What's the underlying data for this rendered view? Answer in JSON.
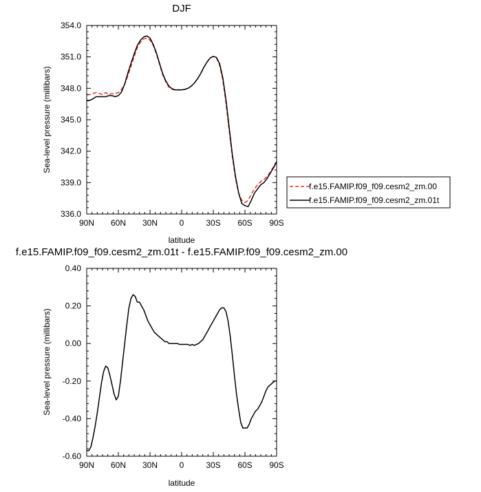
{
  "chart_data": [
    {
      "type": "line",
      "title": "DJF",
      "xlabel": "latitude",
      "ylabel": "Sea-level pressure (millibars)",
      "xlim": [
        -90,
        90
      ],
      "ylim": [
        336.0,
        354.0
      ],
      "x_ticks": [
        {
          "value": -90,
          "label": "90N"
        },
        {
          "value": -60,
          "label": "60N"
        },
        {
          "value": -30,
          "label": "30N"
        },
        {
          "value": 0,
          "label": "0"
        },
        {
          "value": 30,
          "label": "30S"
        },
        {
          "value": 60,
          "label": "60S"
        },
        {
          "value": 90,
          "label": "90S"
        }
      ],
      "y_ticks": [
        336.0,
        339.0,
        342.0,
        345.0,
        348.0,
        351.0,
        354.0
      ],
      "y_tick_labels": [
        "336.0",
        "339.0",
        "342.0",
        "345.0",
        "348.0",
        "351.0",
        "354.0"
      ],
      "legend_position": "right",
      "series": [
        {
          "name": "f.e15.FAMIP.f09_f09.cesm2_zm.00",
          "color": "#e8312a",
          "dash": "dashed",
          "x": [
            -90,
            -87,
            -84,
            -81,
            -78,
            -75,
            -72,
            -69,
            -66,
            -63,
            -60,
            -57,
            -54,
            -51,
            -48,
            -45,
            -42,
            -39,
            -36,
            -33,
            -30,
            -27,
            -24,
            -21,
            -18,
            -15,
            -12,
            -9,
            -6,
            -3,
            0,
            3,
            6,
            9,
            12,
            15,
            18,
            21,
            24,
            27,
            30,
            33,
            36,
            39,
            42,
            45,
            48,
            51,
            54,
            57,
            60,
            63,
            66,
            69,
            72,
            75,
            78,
            81,
            84,
            87,
            90
          ],
          "y": [
            347.4,
            347.4,
            347.5,
            347.6,
            347.5,
            347.4,
            347.6,
            347.4,
            347.5,
            347.5,
            347.6,
            347.9,
            348.4,
            349.2,
            350.1,
            351.0,
            351.9,
            352.4,
            352.7,
            352.8,
            352.6,
            352.1,
            351.3,
            350.3,
            349.3,
            348.6,
            348.1,
            347.9,
            347.85,
            347.85,
            347.85,
            347.9,
            348.0,
            348.2,
            348.5,
            348.9,
            349.4,
            350.0,
            350.5,
            350.9,
            351.05,
            350.9,
            350.2,
            348.8,
            346.6,
            344.0,
            341.5,
            339.4,
            338.0,
            337.3,
            337.1,
            337.3,
            337.9,
            338.4,
            338.8,
            339.1,
            339.3,
            339.6,
            340.0,
            340.5,
            341.0
          ]
        },
        {
          "name": "f.e15.FAMIP.f09_f09.cesm2_zm.01t",
          "color": "#000000",
          "dash": "solid",
          "x": [
            -90,
            -87,
            -84,
            -81,
            -78,
            -75,
            -72,
            -69,
            -66,
            -63,
            -60,
            -57,
            -54,
            -51,
            -48,
            -45,
            -42,
            -39,
            -36,
            -33,
            -30,
            -27,
            -24,
            -21,
            -18,
            -15,
            -12,
            -9,
            -6,
            -3,
            0,
            3,
            6,
            9,
            12,
            15,
            18,
            21,
            24,
            27,
            30,
            33,
            36,
            39,
            42,
            45,
            48,
            51,
            54,
            57,
            60,
            63,
            66,
            69,
            72,
            75,
            78,
            81,
            84,
            87,
            90
          ],
          "y": [
            346.85,
            346.85,
            347.0,
            347.2,
            347.2,
            347.2,
            347.2,
            347.3,
            347.3,
            347.2,
            347.3,
            347.65,
            348.4,
            349.45,
            350.4,
            351.3,
            352.1,
            352.6,
            352.9,
            353.0,
            352.8,
            352.2,
            351.4,
            350.4,
            349.4,
            348.7,
            348.2,
            347.95,
            347.85,
            347.85,
            347.85,
            347.9,
            348.0,
            348.2,
            348.5,
            348.9,
            349.4,
            350.0,
            350.5,
            350.9,
            351.05,
            350.95,
            350.35,
            349.0,
            346.9,
            344.3,
            341.7,
            339.6,
            338.0,
            337.0,
            336.8,
            336.7,
            337.3,
            338.0,
            338.4,
            338.8,
            339.0,
            339.4,
            339.9,
            340.4,
            341.0
          ]
        }
      ]
    },
    {
      "type": "line",
      "title": "f.e15.FAMIP.f09_f09.cesm2_zm.01t - f.e15.FAMIP.f09_f09.cesm2_zm.00",
      "xlabel": "latitude",
      "ylabel": "Sea-level pressure (millibars)",
      "xlim": [
        -90,
        90
      ],
      "ylim": [
        -0.6,
        0.4
      ],
      "x_ticks": [
        {
          "value": -90,
          "label": "90N"
        },
        {
          "value": -60,
          "label": "60N"
        },
        {
          "value": -30,
          "label": "30N"
        },
        {
          "value": 0,
          "label": "0"
        },
        {
          "value": 30,
          "label": "30S"
        },
        {
          "value": 60,
          "label": "60S"
        },
        {
          "value": 90,
          "label": "90S"
        }
      ],
      "y_ticks": [
        -0.6,
        -0.4,
        -0.2,
        0.0,
        0.2,
        0.4
      ],
      "y_tick_labels": [
        "-0.60",
        "-0.40",
        "-0.20",
        "0.00",
        "0.20",
        "0.40"
      ],
      "series": [
        {
          "color": "#000000",
          "dash": "solid",
          "x": [
            -90,
            -88,
            -86,
            -84,
            -82,
            -80,
            -78,
            -76,
            -74,
            -72,
            -70,
            -68,
            -66,
            -64,
            -62,
            -60,
            -58,
            -56,
            -54,
            -52,
            -50,
            -48,
            -46,
            -44,
            -42,
            -40,
            -38,
            -36,
            -34,
            -32,
            -30,
            -28,
            -26,
            -24,
            -22,
            -20,
            -18,
            -16,
            -14,
            -12,
            -10,
            -8,
            -6,
            -4,
            -2,
            0,
            2,
            4,
            6,
            8,
            10,
            12,
            14,
            16,
            18,
            20,
            22,
            24,
            26,
            28,
            30,
            32,
            34,
            36,
            38,
            40,
            42,
            44,
            46,
            48,
            50,
            52,
            54,
            56,
            58,
            60,
            62,
            64,
            66,
            68,
            70,
            72,
            74,
            76,
            78,
            80,
            82,
            84,
            86,
            88,
            90
          ],
          "y": [
            -0.57,
            -0.57,
            -0.55,
            -0.5,
            -0.44,
            -0.37,
            -0.29,
            -0.21,
            -0.15,
            -0.12,
            -0.13,
            -0.17,
            -0.22,
            -0.27,
            -0.3,
            -0.28,
            -0.2,
            -0.1,
            0.0,
            0.1,
            0.19,
            0.24,
            0.26,
            0.25,
            0.22,
            0.22,
            0.2,
            0.18,
            0.15,
            0.12,
            0.1,
            0.08,
            0.06,
            0.05,
            0.04,
            0.03,
            0.02,
            0.01,
            0.01,
            0.0,
            0.0,
            0.0,
            0.0,
            0.0,
            -0.005,
            -0.005,
            -0.005,
            -0.005,
            -0.005,
            -0.01,
            -0.005,
            -0.01,
            -0.005,
            0.0,
            0.01,
            0.02,
            0.04,
            0.06,
            0.08,
            0.1,
            0.12,
            0.14,
            0.16,
            0.18,
            0.19,
            0.19,
            0.17,
            0.12,
            0.04,
            -0.06,
            -0.17,
            -0.27,
            -0.35,
            -0.42,
            -0.45,
            -0.45,
            -0.45,
            -0.43,
            -0.4,
            -0.38,
            -0.36,
            -0.35,
            -0.33,
            -0.31,
            -0.28,
            -0.25,
            -0.23,
            -0.22,
            -0.21,
            -0.2,
            -0.2
          ]
        }
      ]
    }
  ]
}
